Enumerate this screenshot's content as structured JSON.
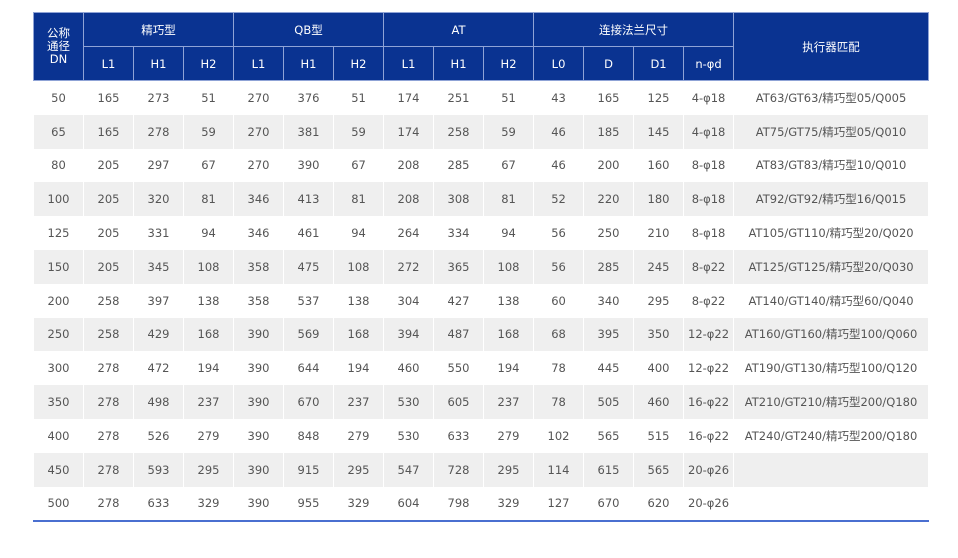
{
  "header": {
    "dn": [
      "公称",
      "通径",
      "DN"
    ],
    "groups": [
      "精巧型",
      "QB型",
      "AT",
      "连接法兰尺寸"
    ],
    "actuator": "执行器匹配",
    "sub": [
      "L1",
      "H1",
      "H2",
      "L1",
      "H1",
      "H2",
      "L1",
      "H1",
      "H2",
      "L0",
      "D",
      "D1",
      "n-φd"
    ]
  },
  "rows": [
    [
      "50",
      "165",
      "273",
      "51",
      "270",
      "376",
      "51",
      "174",
      "251",
      "51",
      "43",
      "165",
      "125",
      "4-φ18",
      "AT63/GT63/精巧型05/Q005"
    ],
    [
      "65",
      "165",
      "278",
      "59",
      "270",
      "381",
      "59",
      "174",
      "258",
      "59",
      "46",
      "185",
      "145",
      "4-φ18",
      "AT75/GT75/精巧型05/Q010"
    ],
    [
      "80",
      "205",
      "297",
      "67",
      "270",
      "390",
      "67",
      "208",
      "285",
      "67",
      "46",
      "200",
      "160",
      "8-φ18",
      "AT83/GT83/精巧型10/Q010"
    ],
    [
      "100",
      "205",
      "320",
      "81",
      "346",
      "413",
      "81",
      "208",
      "308",
      "81",
      "52",
      "220",
      "180",
      "8-φ18",
      "AT92/GT92/精巧型16/Q015"
    ],
    [
      "125",
      "205",
      "331",
      "94",
      "346",
      "461",
      "94",
      "264",
      "334",
      "94",
      "56",
      "250",
      "210",
      "8-φ18",
      "AT105/GT110/精巧型20/Q020"
    ],
    [
      "150",
      "205",
      "345",
      "108",
      "358",
      "475",
      "108",
      "272",
      "365",
      "108",
      "56",
      "285",
      "245",
      "8-φ22",
      "AT125/GT125/精巧型20/Q030"
    ],
    [
      "200",
      "258",
      "397",
      "138",
      "358",
      "537",
      "138",
      "304",
      "427",
      "138",
      "60",
      "340",
      "295",
      "8-φ22",
      "AT140/GT140/精巧型60/Q040"
    ],
    [
      "250",
      "258",
      "429",
      "168",
      "390",
      "569",
      "168",
      "394",
      "487",
      "168",
      "68",
      "395",
      "350",
      "12-φ22",
      "AT160/GT160/精巧型100/Q060"
    ],
    [
      "300",
      "278",
      "472",
      "194",
      "390",
      "644",
      "194",
      "460",
      "550",
      "194",
      "78",
      "445",
      "400",
      "12-φ22",
      "AT190/GT130/精巧型100/Q120"
    ],
    [
      "350",
      "278",
      "498",
      "237",
      "390",
      "670",
      "237",
      "530",
      "605",
      "237",
      "78",
      "505",
      "460",
      "16-φ22",
      "AT210/GT210/精巧型200/Q180"
    ],
    [
      "400",
      "278",
      "526",
      "279",
      "390",
      "848",
      "279",
      "530",
      "633",
      "279",
      "102",
      "565",
      "515",
      "16-φ22",
      "AT240/GT240/精巧型200/Q180"
    ],
    [
      "450",
      "278",
      "593",
      "295",
      "390",
      "915",
      "295",
      "547",
      "728",
      "295",
      "114",
      "615",
      "565",
      "20-φ26",
      ""
    ],
    [
      "500",
      "278",
      "633",
      "329",
      "390",
      "955",
      "329",
      "604",
      "798",
      "329",
      "127",
      "670",
      "620",
      "20-φ26",
      ""
    ]
  ],
  "colors": {
    "header_bg": "#0a3391",
    "stripe": "#efefef",
    "bottom_rule": "#4a6fd0"
  }
}
